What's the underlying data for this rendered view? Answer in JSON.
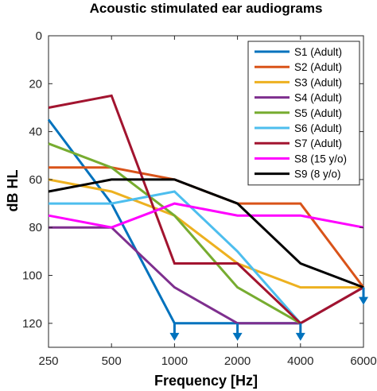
{
  "chart_data": {
    "type": "line",
    "title": "Acoustic stimulated ear audiograms",
    "xlabel": "Frequency [Hz]",
    "ylabel": "dB HL",
    "x": [
      250,
      500,
      1000,
      2000,
      4000,
      6000
    ],
    "x_tick_labels": [
      "250",
      "500",
      "1000",
      "2000",
      "4000",
      "6000"
    ],
    "ylim": [
      0,
      130
    ],
    "y_reversed": true,
    "y_ticks": [
      0,
      20,
      40,
      60,
      80,
      100,
      120
    ],
    "grid": false,
    "legend_position": "top-right",
    "series": [
      {
        "name": "S1 (Adult)",
        "color": "#0072BD",
        "values": [
          35,
          70,
          120,
          120,
          120,
          null
        ]
      },
      {
        "name": "S2 (Adult)",
        "color": "#D95319",
        "values": [
          55,
          55,
          60,
          70,
          70,
          105
        ]
      },
      {
        "name": "S3 (Adult)",
        "color": "#EDB120",
        "values": [
          60,
          65,
          75,
          95,
          105,
          105
        ]
      },
      {
        "name": "S4 (Adult)",
        "color": "#7E2F8E",
        "values": [
          80,
          80,
          105,
          120,
          120,
          105
        ]
      },
      {
        "name": "S5 (Adult)",
        "color": "#77AC30",
        "values": [
          45,
          55,
          75,
          105,
          120,
          null
        ]
      },
      {
        "name": "S6 (Adult)",
        "color": "#4DBEEE",
        "values": [
          70,
          70,
          65,
          90,
          120,
          null
        ]
      },
      {
        "name": "S7 (Adult)",
        "color": "#A2142F",
        "values": [
          30,
          25,
          95,
          95,
          120,
          105
        ]
      },
      {
        "name": "S8 (15 y/o)",
        "color": "#FF00FF",
        "values": [
          75,
          80,
          70,
          75,
          75,
          80
        ]
      },
      {
        "name": "S9 (8 y/o)",
        "color": "#000000",
        "values": [
          65,
          60,
          60,
          70,
          95,
          105
        ]
      }
    ],
    "no_response_arrows": {
      "color": "#0072BD",
      "points": [
        {
          "x": 1000,
          "y": 120
        },
        {
          "x": 2000,
          "y": 120
        },
        {
          "x": 4000,
          "y": 120
        },
        {
          "x": 6000,
          "y": 105
        }
      ]
    }
  }
}
